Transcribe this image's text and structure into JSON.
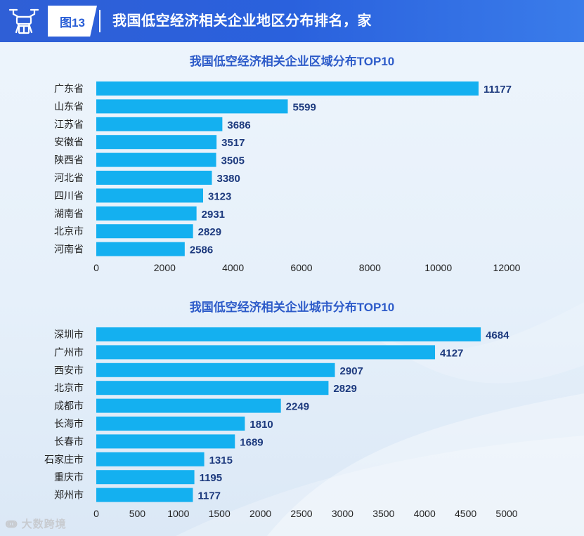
{
  "header": {
    "tag": "图13",
    "title": "我国低空经济相关企业地区分布排名，家"
  },
  "watermark": "大数跨境",
  "colors": {
    "bar": "#14b0f0",
    "value_label": "#1d3a7e",
    "category_label": "#222222",
    "title": "#2d5bc9"
  },
  "chart_data": [
    {
      "type": "bar",
      "orientation": "horizontal",
      "title": "我国低空经济相关企业区域分布TOP10",
      "categories": [
        "广东省",
        "山东省",
        "江苏省",
        "安徽省",
        "陕西省",
        "河北省",
        "四川省",
        "湖南省",
        "北京市",
        "河南省"
      ],
      "values": [
        11177,
        5599,
        3686,
        3517,
        3505,
        3380,
        3123,
        2931,
        2829,
        2586
      ],
      "xlim": [
        0,
        12000
      ],
      "xticks": [
        0,
        2000,
        4000,
        6000,
        8000,
        10000,
        12000
      ],
      "grid": false
    },
    {
      "type": "bar",
      "orientation": "horizontal",
      "title": "我国低空经济相关企业城市分布TOP10",
      "categories": [
        "深圳市",
        "广州市",
        "西安市",
        "北京市",
        "成都市",
        "长海市",
        "长春市",
        "石家庄市",
        "重庆市",
        "郑州市"
      ],
      "values": [
        4684,
        4127,
        2907,
        2829,
        2249,
        1810,
        1689,
        1315,
        1195,
        1177
      ],
      "xlim": [
        0,
        5000
      ],
      "xticks": [
        0,
        500,
        1000,
        1500,
        2000,
        2500,
        3000,
        3500,
        4000,
        4500,
        5000
      ],
      "grid": false
    }
  ]
}
